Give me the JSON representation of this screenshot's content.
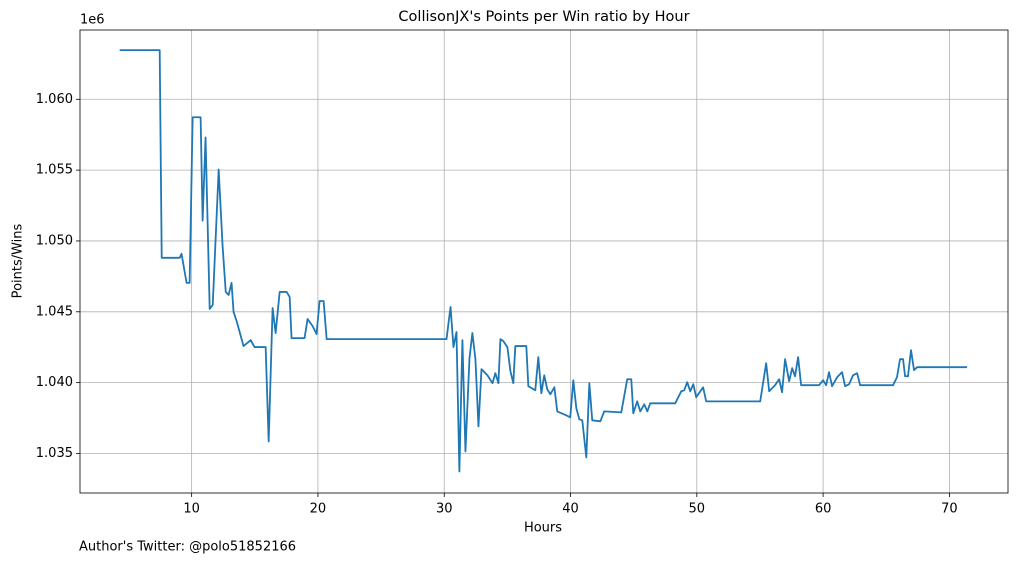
{
  "chart_data": {
    "type": "line",
    "title": "CollisonJX's Points per Win ratio by Hour",
    "xlabel": "Hours",
    "ylabel": "Points/Wins",
    "offset_label": "1e6",
    "footnote": "Author's Twitter: @polo51852166",
    "grid": true,
    "color": "#1f77b4",
    "xlim": [
      1.16,
      74.64
    ],
    "xticks": [
      10,
      20,
      30,
      40,
      50,
      60,
      70
    ],
    "ylim": [
      1.03221,
      1.06489
    ],
    "yticks": [
      1.035,
      {
        "value": 1.04,
        "label": "1.040"
      },
      1.045,
      {
        "value": 1.05,
        "label": "1.050"
      },
      1.055,
      {
        "value": 1.06,
        "label": "1.060"
      }
    ],
    "x": [
      4.3,
      7.47,
      7.63,
      9.05,
      9.2,
      9.6,
      9.84,
      10.08,
      10.71,
      10.87,
      11.1,
      11.43,
      11.67,
      12.14,
      12.45,
      12.7,
      12.93,
      13.16,
      13.32,
      13.56,
      14.11,
      14.67,
      14.98,
      15.86,
      16.1,
      16.41,
      16.65,
      16.97,
      17.52,
      17.76,
      17.91,
      18.94,
      19.18,
      19.58,
      19.89,
      20.13,
      20.45,
      20.69,
      30.18,
      30.5,
      30.73,
      30.97,
      31.2,
      31.44,
      31.68,
      32.0,
      32.23,
      32.47,
      32.71,
      32.95,
      33.42,
      33.82,
      34.05,
      34.29,
      34.45,
      34.68,
      35.0,
      35.24,
      35.47,
      35.63,
      36.5,
      36.66,
      37.21,
      37.45,
      37.69,
      37.92,
      38.16,
      38.4,
      38.72,
      38.95,
      39.66,
      39.98,
      40.22,
      40.46,
      40.7,
      40.93,
      41.25,
      41.49,
      41.72,
      42.36,
      42.67,
      44.02,
      44.49,
      44.81,
      44.97,
      45.28,
      45.52,
      45.84,
      46.08,
      46.31,
      48.29,
      48.77,
      49.0,
      49.24,
      49.48,
      49.72,
      49.95,
      50.5,
      50.74,
      55.02,
      55.49,
      55.73,
      56.2,
      56.52,
      56.75,
      56.99,
      57.31,
      57.55,
      57.78,
      58.02,
      58.26,
      59.68,
      60.0,
      60.24,
      60.47,
      60.71,
      61.11,
      61.5,
      61.74,
      62.06,
      62.37,
      62.69,
      62.93,
      65.54,
      65.85,
      66.09,
      66.33,
      66.49,
      66.72,
      66.96,
      67.2,
      67.44,
      71.4
    ],
    "values": [
      1.06347,
      1.06347,
      1.04881,
      1.04881,
      1.04909,
      1.04704,
      1.04704,
      1.05873,
      1.05873,
      1.05143,
      1.05731,
      1.0452,
      1.04548,
      1.05504,
      1.04966,
      1.0464,
      1.04619,
      1.04704,
      1.04499,
      1.04435,
      1.04258,
      1.043,
      1.04251,
      1.04251,
      1.03585,
      1.04527,
      1.0435,
      1.0464,
      1.0464,
      1.04605,
      1.04314,
      1.04314,
      1.04449,
      1.04399,
      1.04343,
      1.04576,
      1.04576,
      1.04307,
      1.04307,
      1.04534,
      1.04251,
      1.04357,
      1.03373,
      1.043,
      1.03514,
      1.04173,
      1.0435,
      1.04166,
      1.03691,
      1.04095,
      1.04052,
      1.03996,
      1.04067,
      1.03996,
      1.04307,
      1.04293,
      1.04251,
      1.04081,
      1.03996,
      1.04258,
      1.04258,
      1.03975,
      1.03946,
      1.0418,
      1.03925,
      1.04052,
      1.03953,
      1.03918,
      1.03967,
      1.03797,
      1.03769,
      1.03755,
      1.04017,
      1.03819,
      1.03741,
      1.03734,
      1.03472,
      1.03996,
      1.03734,
      1.03727,
      1.03797,
      1.0379,
      1.04024,
      1.04024,
      1.03783,
      1.03868,
      1.03797,
      1.03847,
      1.03797,
      1.03854,
      1.03854,
      1.03939,
      1.03946,
      1.04003,
      1.03939,
      1.03989,
      1.03897,
      1.03967,
      1.03868,
      1.03868,
      1.04137,
      1.03939,
      1.03982,
      1.04024,
      1.03932,
      1.04166,
      1.0401,
      1.04102,
      1.04045,
      1.0418,
      1.03982,
      1.03982,
      1.04017,
      1.03982,
      1.04074,
      1.03975,
      1.04038,
      1.04074,
      1.03975,
      1.03989,
      1.04052,
      1.04067,
      1.03982,
      1.03982,
      1.04038,
      1.04166,
      1.04166,
      1.04045,
      1.04045,
      1.04229,
      1.04088,
      1.04109,
      1.04109
    ]
  }
}
